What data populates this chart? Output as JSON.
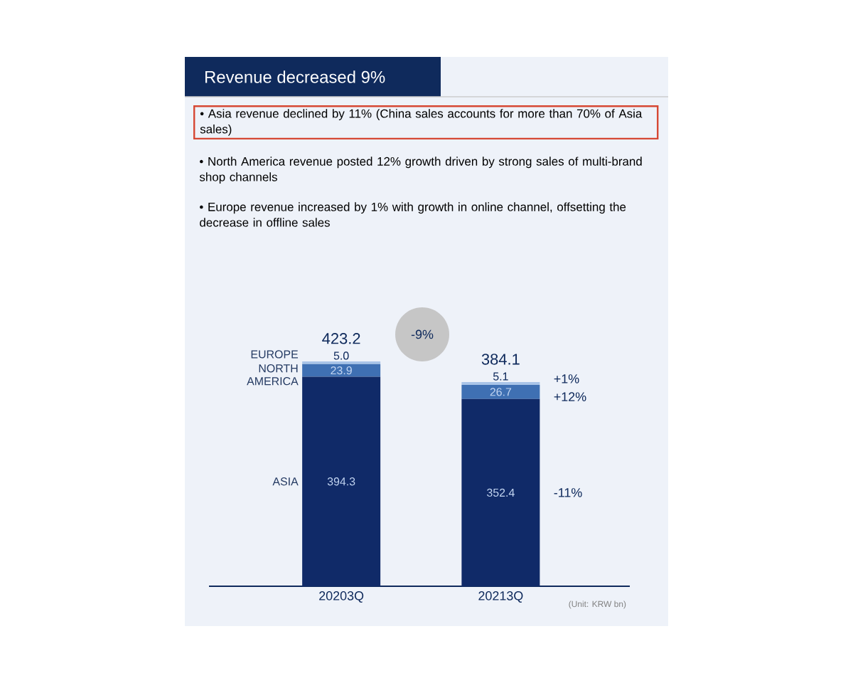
{
  "chart_data": {
    "type": "bar",
    "stacked": true,
    "title": "Revenue decreased 9%",
    "categories": [
      "20203Q",
      "20213Q"
    ],
    "series": [
      {
        "name": "ASIA",
        "color": "#102a68",
        "values": [
          394.3,
          352.4
        ],
        "value_labels": [
          "394.3",
          "352.4"
        ]
      },
      {
        "name": "NORTH AMERICA",
        "color": "#3f70b3",
        "values": [
          23.9,
          26.7
        ],
        "value_labels": [
          "23.9",
          "26.7"
        ]
      },
      {
        "name": "EUROPE",
        "color": "#a9c4e8",
        "values": [
          5.0,
          5.1
        ],
        "value_labels": [
          "5.0",
          "5.1"
        ]
      }
    ],
    "totals": [
      "423.2",
      "384.1"
    ],
    "tick_labels": "x",
    "annotations": [
      "• Asia revenue declined by 11% (China sales accounts for more than 70% of Asia sales)",
      "• North America revenue posted 12% growth driven by strong sales of multi-brand shop channels",
      "• Europe revenue increased by 1% with growth in online channel, offsetting the decrease in offline sales",
      "-9%",
      "-11%",
      "+12%",
      "+1%",
      "(Unit: KRW bn)"
    ]
  }
}
